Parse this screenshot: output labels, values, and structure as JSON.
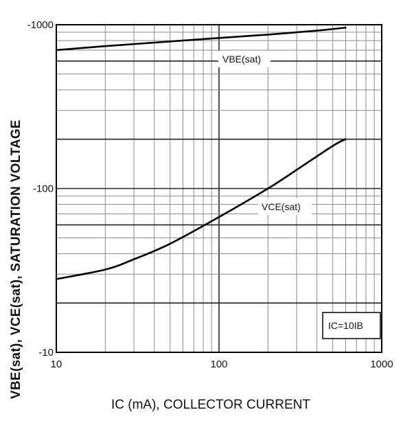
{
  "chart_data": {
    "type": "line",
    "ylabel": "VBE(sat), VCE(sat), SATURATION VOLTAGE",
    "xlabel": "IC (mA), COLLECTOR CURRENT",
    "xscale": "log",
    "yscale": "log",
    "xlim": [
      10,
      1000
    ],
    "ylim": [
      -10,
      -1000
    ],
    "grid": true,
    "x_ticks": [
      "10",
      "100",
      "1000"
    ],
    "y_ticks": [
      "-1000",
      "-100",
      "-10"
    ],
    "condition": "IC=10IB",
    "series": [
      {
        "name": "VBE(sat)",
        "x": [
          10,
          20,
          50,
          100,
          200,
          400,
          600
        ],
        "y": [
          -700,
          -740,
          -790,
          -830,
          -870,
          -920,
          -960
        ]
      },
      {
        "name": "VCE(sat)",
        "x": [
          10,
          20,
          30,
          50,
          100,
          200,
          300,
          500,
          600
        ],
        "y": [
          -28,
          -32,
          -37,
          -46,
          -67,
          -100,
          -130,
          -182,
          -200
        ]
      }
    ]
  }
}
